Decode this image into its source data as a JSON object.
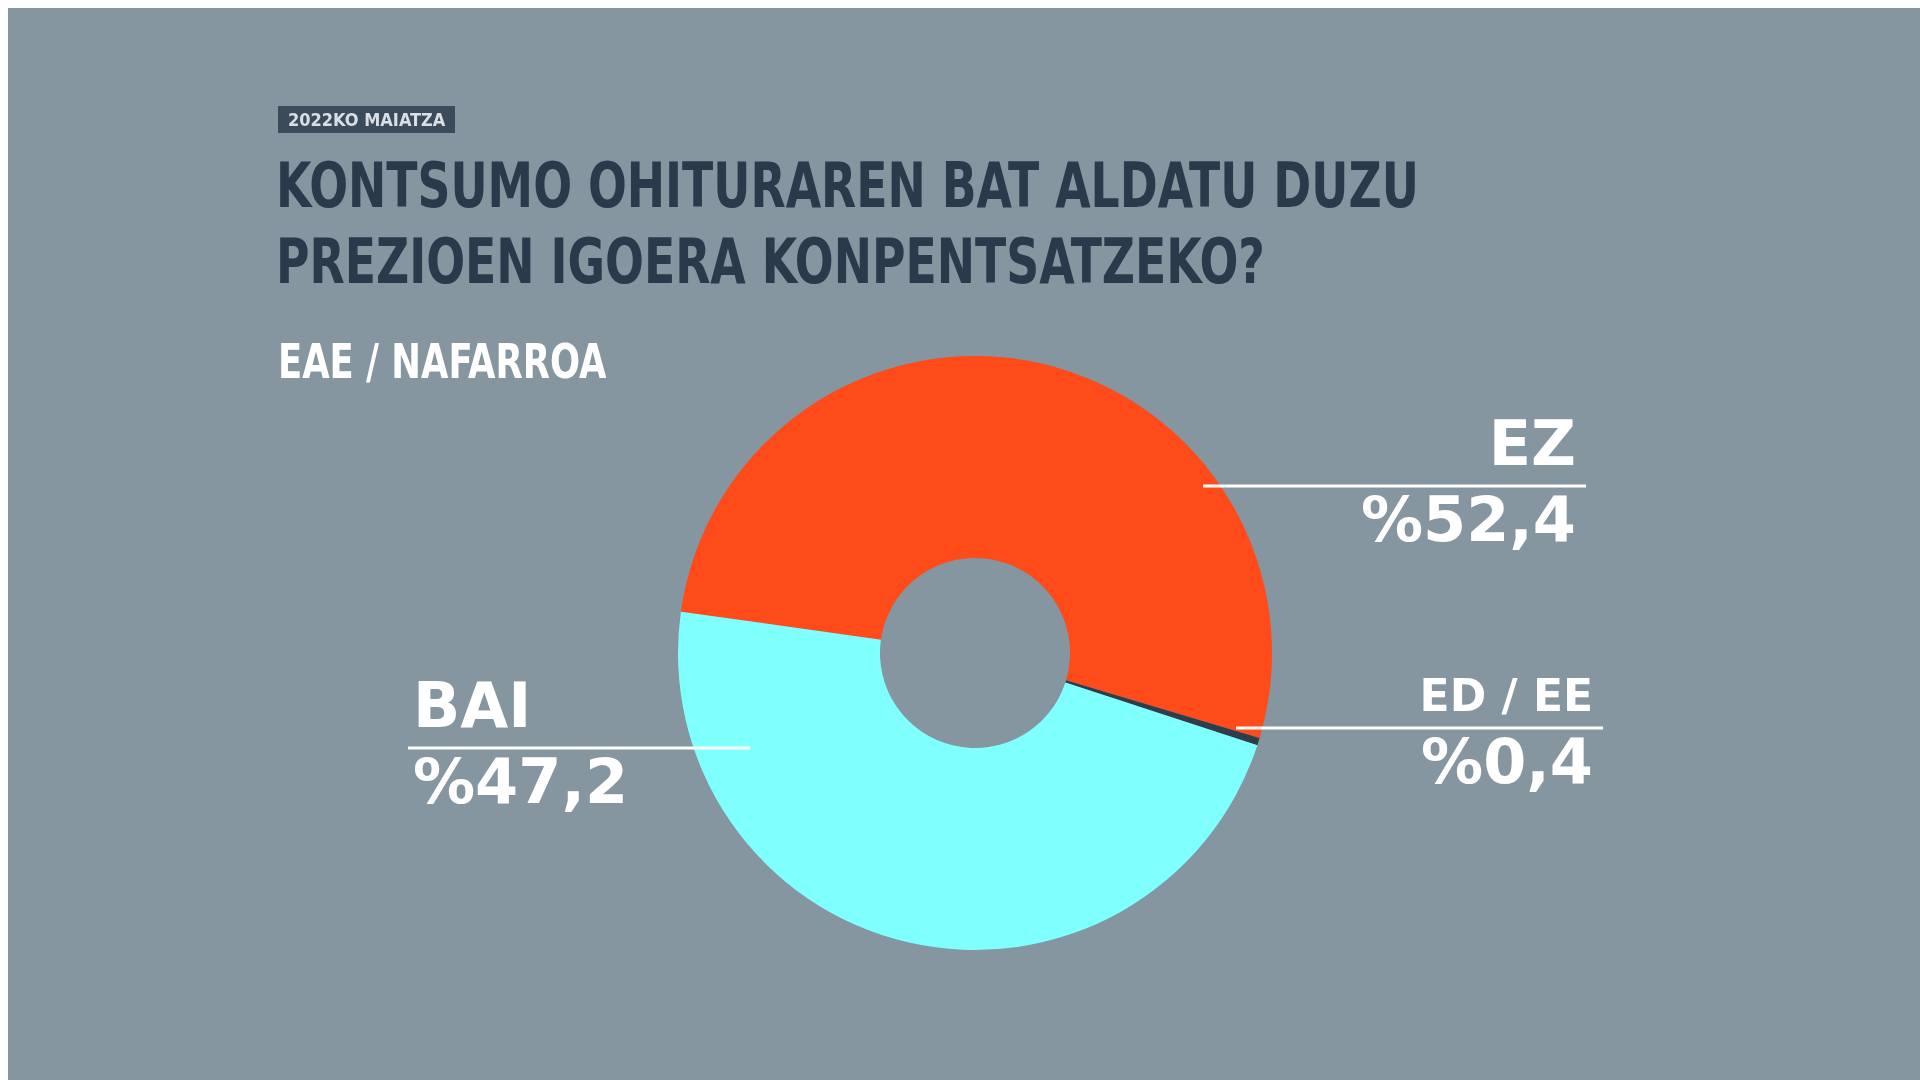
{
  "chart_data": {
    "type": "donut",
    "title": "KONTSUMO OHITURAREN BAT ALDATU DUZU PREZIOEN IGOERA KONPENTSATZEKO?",
    "subtitle": "EAE / NAFARROA",
    "annotations": [
      "2022KO MAIATZA"
    ],
    "categories": [
      "EZ",
      "ED / EE",
      "BAI"
    ],
    "values": [
      52.4,
      0.4,
      47.2
    ],
    "value_labels": [
      "%52,4",
      "%0,4",
      "%47,2"
    ],
    "colors": [
      "#ff4a1a",
      "#2e3d4a",
      "#80ffff"
    ],
    "legend": false
  }
}
